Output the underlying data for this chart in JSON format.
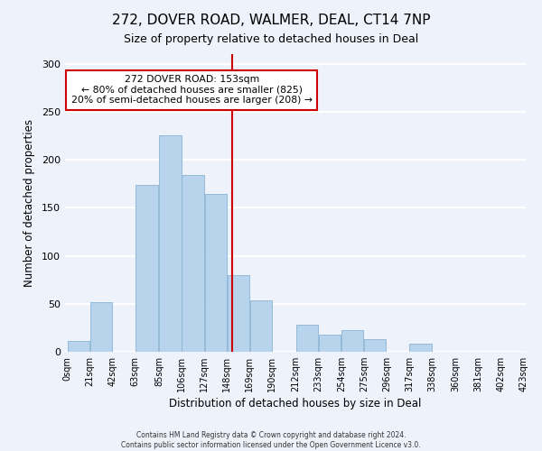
{
  "title": "272, DOVER ROAD, WALMER, DEAL, CT14 7NP",
  "subtitle": "Size of property relative to detached houses in Deal",
  "xlabel": "Distribution of detached houses by size in Deal",
  "ylabel": "Number of detached properties",
  "footer_lines": [
    "Contains HM Land Registry data © Crown copyright and database right 2024.",
    "Contains public sector information licensed under the Open Government Licence v3.0."
  ],
  "bar_left_edges": [
    0,
    21,
    42,
    63,
    85,
    106,
    127,
    148,
    169,
    190,
    212,
    233,
    254,
    275,
    296,
    317,
    338,
    360,
    381,
    402
  ],
  "bar_widths": [
    21,
    21,
    21,
    22,
    21,
    21,
    21,
    21,
    21,
    22,
    21,
    21,
    21,
    21,
    21,
    21,
    22,
    21,
    21,
    21
  ],
  "bar_heights": [
    11,
    52,
    0,
    174,
    225,
    184,
    164,
    80,
    54,
    0,
    28,
    18,
    23,
    13,
    0,
    8,
    0,
    0,
    0,
    0
  ],
  "bar_color": "#b8d4ed",
  "bar_edge_color": "#8ab4d4",
  "tick_labels": [
    "0sqm",
    "21sqm",
    "42sqm",
    "63sqm",
    "85sqm",
    "106sqm",
    "127sqm",
    "148sqm",
    "169sqm",
    "190sqm",
    "212sqm",
    "233sqm",
    "254sqm",
    "275sqm",
    "296sqm",
    "317sqm",
    "338sqm",
    "360sqm",
    "381sqm",
    "402sqm",
    "423sqm"
  ],
  "vline_x": 153,
  "vline_color": "#cc0000",
  "annotation_line1": "272 DOVER ROAD: 153sqm",
  "annotation_line2": "← 80% of detached houses are smaller (825)",
  "annotation_line3": "20% of semi-detached houses are larger (208) →",
  "ylim": [
    0,
    310
  ],
  "yticks": [
    0,
    50,
    100,
    150,
    200,
    250,
    300
  ],
  "bg_color": "#eef2fb",
  "plot_bg_color": "#eef2fb",
  "grid_color": "#ffffff",
  "title_fontsize": 11,
  "subtitle_fontsize": 9
}
